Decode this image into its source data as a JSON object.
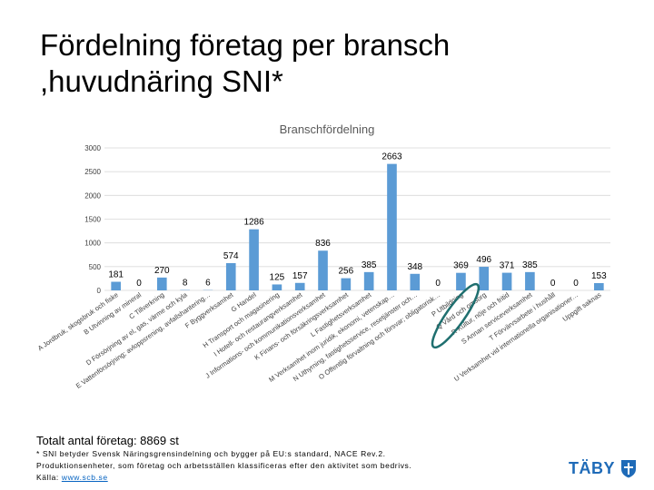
{
  "slide": {
    "title_line1": "Fördelning företag per bransch",
    "title_line2": ",huvudnäring SNI*",
    "total": "Totalt antal företag: 8869 st",
    "footnote": "* SNI betyder Svensk Näringsgrensindelning och bygger på EU:s standard, NACE Rev.2. Produktionsenheter, som företag och arbetsställen klassificeras efter den aktivitet som bedrivs. Källa: ",
    "source_link": "www.scb.se",
    "logo_text": "TÄBY"
  },
  "colors": {
    "bar": "#5b9bd5",
    "grid": "#d9d9d9",
    "label": "#404040",
    "highlight": "#1f6f6f",
    "logo": "#1f6bb8"
  },
  "chart_data": {
    "type": "bar",
    "title": "Branschfördelning",
    "xlabel": "",
    "ylabel": "",
    "ylim": [
      0,
      3000
    ],
    "yticks": [
      "0",
      "500",
      "1000",
      "1500",
      "2000",
      "2500",
      "3000"
    ],
    "categories": [
      "A Jordbruk, skogsbruk och fiske",
      "B Utvinning av mineral",
      "C Tillverkning",
      "D Försörjning av el, gas, värme och kyla",
      "E Vattenförsörjning; avloppsrening, avfallshantering…",
      "F Byggverksamhet",
      "G Handel",
      "H Transport och magasinering",
      "I Hotell- och restaurangverksamhet",
      "J Informations- och kommunikationsverksamhet",
      "K Finans- och försäkringsverksamhet",
      "L Fastighetsverksamhet",
      "M Verksamhet inom juridik, ekonomi, vetenskap…",
      "N Uthyrning, fastighetsservice, resetjänster och…",
      "O Offentlig förvaltning och försvar; obligatorisk…",
      "P Utbildning",
      "Q Vård och omsorg",
      "R Kultur, nöje och fritid",
      "S Annan serviceverksamhet",
      "T Förvärvsarbete i hushåll",
      "U Verksamhet vid internationella organisationer…",
      "Uppgift saknas"
    ],
    "values": [
      181,
      0,
      270,
      8,
      6,
      574,
      1286,
      125,
      157,
      836,
      256,
      385,
      2663,
      348,
      0,
      369,
      496,
      371,
      385,
      0,
      0,
      153
    ],
    "data_labels": [
      "181",
      "0",
      "270",
      "8",
      "6",
      "574",
      "1286",
      "125",
      "157",
      "836",
      "256",
      "385",
      "2663",
      "348",
      "0",
      "369",
      "496",
      "371",
      "385",
      "0",
      "0",
      "153"
    ],
    "highlighted_category": "P Utbildning"
  }
}
